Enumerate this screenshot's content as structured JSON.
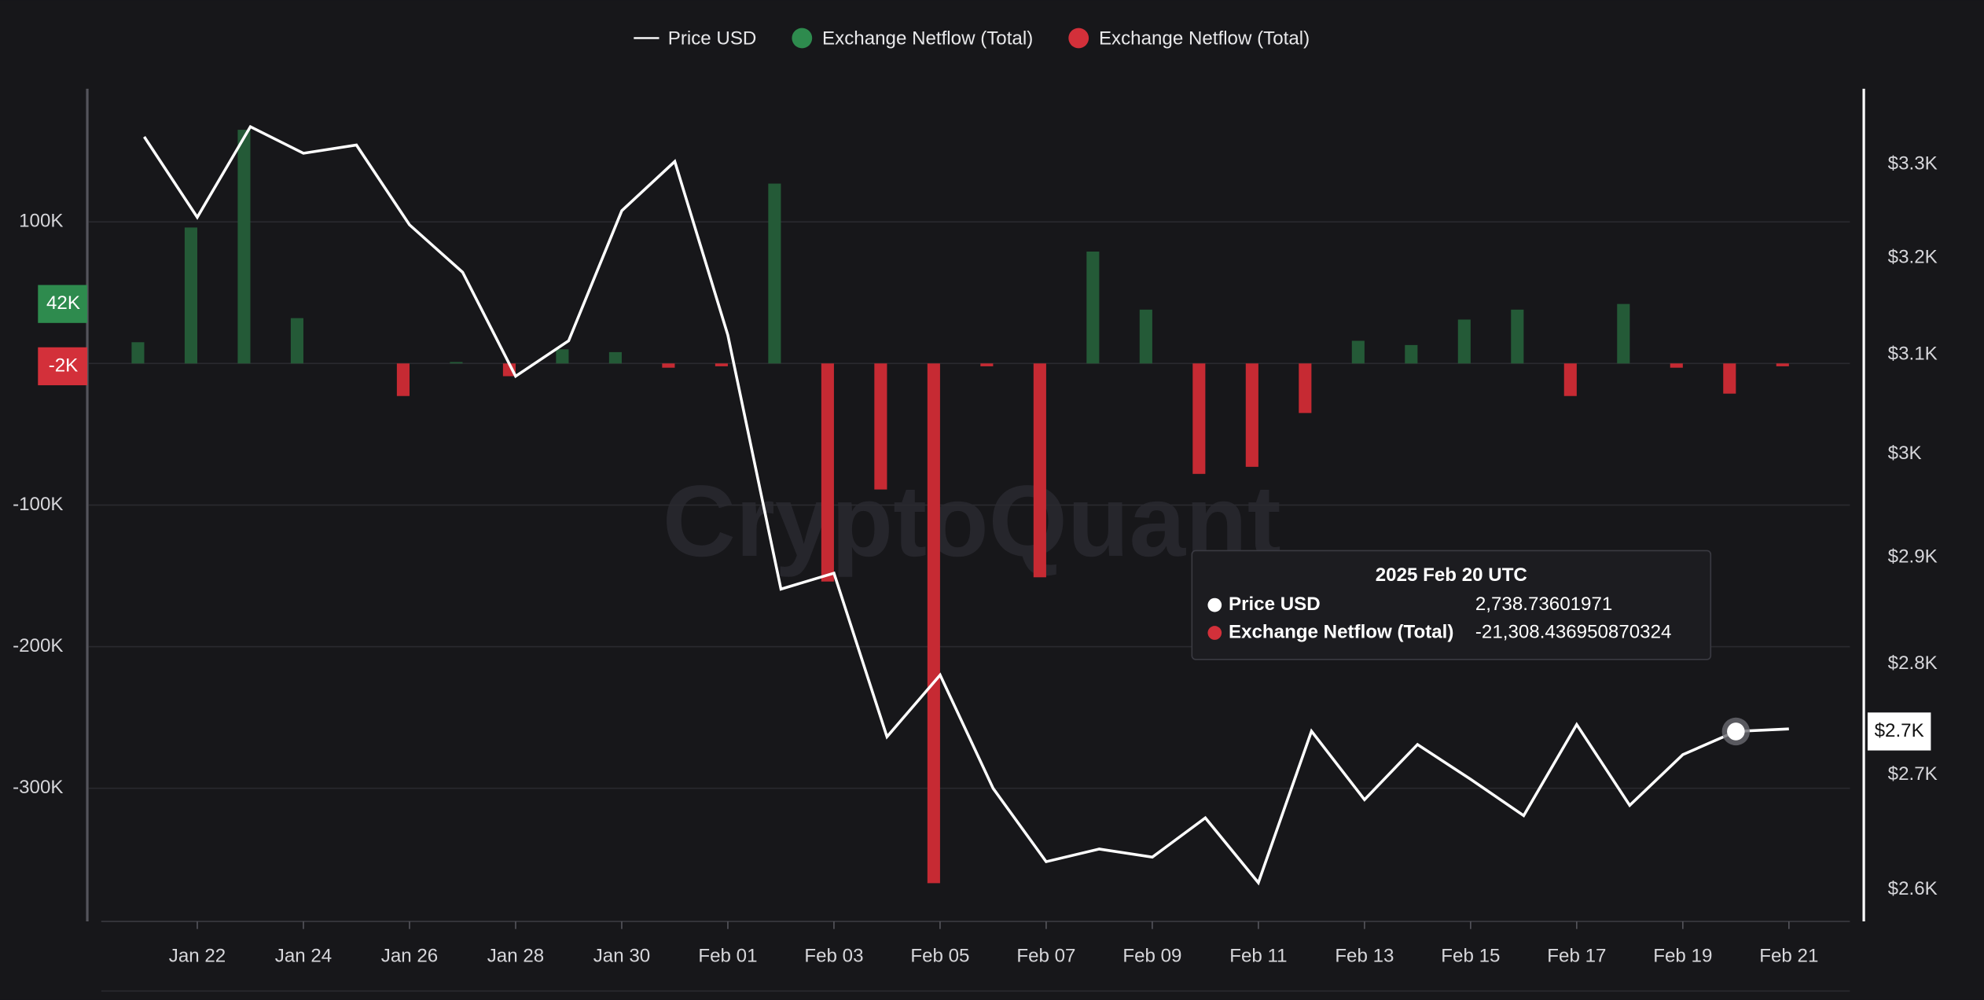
{
  "chart_data": {
    "type": "combo",
    "watermark": "CryptoQuant",
    "legend": "top",
    "categories": [
      null,
      "Jan 22",
      null,
      "Jan 24",
      null,
      "Jan 26",
      null,
      "Jan 28",
      null,
      "Jan 30",
      null,
      "Feb 01",
      null,
      "Feb 03",
      null,
      "Feb 05",
      null,
      "Feb 07",
      null,
      "Feb 09",
      null,
      "Feb 11",
      null,
      "Feb 13",
      null,
      "Feb 15",
      null,
      "Feb 17",
      null,
      "Feb 19",
      null,
      "Feb 21"
    ],
    "series": [
      {
        "name": "Price USD",
        "type": "line",
        "axis": "y2",
        "color": "#ffffff",
        "values": [
          3330,
          3243,
          3341,
          3312,
          3321,
          3235,
          3185,
          3078,
          3114,
          3250,
          3303,
          3120,
          2870,
          2885,
          2734,
          2790,
          2688,
          2624,
          2635,
          2628,
          2662,
          2606,
          2739,
          2678,
          2727,
          2696,
          2664,
          2745,
          2673,
          2718,
          2738.73601971,
          2741
        ],
        "last_label": {
          "value": 2738.73601971,
          "label": "$2.7K"
        }
      },
      {
        "name": "Exchange Netflow (Total)",
        "type": "bar",
        "color": "#245a37",
        "legend_color": "#2e8b4e",
        "values": [
          15000,
          96000,
          165000,
          32000,
          null,
          null,
          1000,
          null,
          10000,
          8000,
          null,
          null,
          127000,
          null,
          null,
          null,
          null,
          null,
          79000,
          38000,
          null,
          null,
          null,
          16000,
          13000,
          31000,
          38000,
          null,
          42000,
          null,
          null,
          null
        ],
        "last_label": {
          "value": 42000,
          "label": "42K"
        }
      },
      {
        "name": "Exchange Netflow (Total)",
        "type": "bar",
        "color": "#c62a33",
        "legend_color": "#d3303a",
        "values": [
          null,
          null,
          null,
          null,
          null,
          -23000,
          null,
          -9000,
          null,
          null,
          -3000,
          -2000,
          null,
          -154000,
          -89000,
          -367000,
          -2000,
          -151000,
          null,
          null,
          -78000,
          -73000,
          -35000,
          null,
          null,
          null,
          null,
          -23000,
          null,
          -3000,
          -21308.436950870324,
          -2000
        ],
        "last_label": {
          "value": -2000,
          "label": "-2K"
        }
      }
    ],
    "ylim": [
      -394000,
      194000
    ],
    "yticks": [
      {
        "value": 100000,
        "label": "100K"
      },
      {
        "value": -100000,
        "label": "-100K"
      },
      {
        "value": -200000,
        "label": "-200K"
      },
      {
        "value": -300000,
        "label": "-300K"
      }
    ],
    "grid": true,
    "y2lim": [
      2573,
      3383
    ],
    "y2log": true,
    "y2ticks": [
      {
        "value": 3300,
        "label": "$3.3K"
      },
      {
        "value": 3200,
        "label": "$3.2K"
      },
      {
        "value": 3100,
        "label": "$3.1K"
      },
      {
        "value": 3000,
        "label": "$3K"
      },
      {
        "value": 2900,
        "label": "$2.9K"
      },
      {
        "value": 2800,
        "label": "$2.8K"
      },
      {
        "value": 2700,
        "label": "$2.7K"
      },
      {
        "value": 2600,
        "label": "$2.6K"
      }
    ],
    "tooltip": {
      "date": "2025 Feb 20 UTC",
      "rows": [
        {
          "name": "Price USD",
          "value_label": "2,738.73601971"
        },
        {
          "name": "Exchange Netflow (Total)",
          "value_label": "-21,308.436950870324"
        }
      ]
    }
  }
}
